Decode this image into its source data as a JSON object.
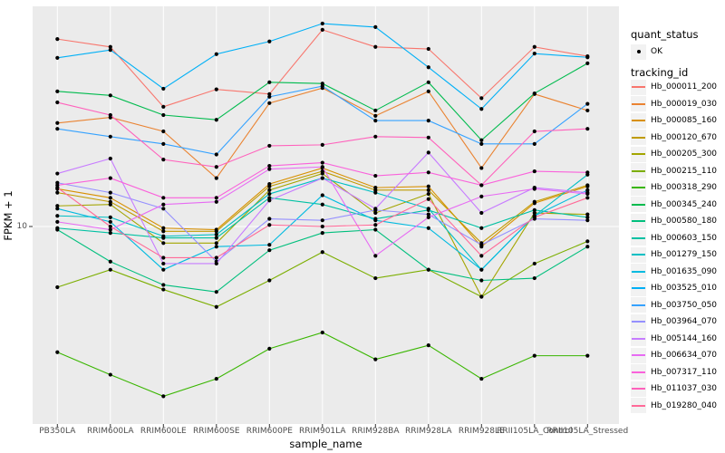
{
  "figure": {
    "xlabel": "sample_name",
    "ylabel": "FPKM + 1",
    "y_tick_label": "10",
    "panel_background": "#EBEBEB",
    "gridline_color": "#FFFFFF",
    "point_color": "#000000",
    "tick_color": "#333333"
  },
  "legend": {
    "quant_status_title": "quant_status",
    "quant_status_items": [
      {
        "label": "OK",
        "icon": "black-point"
      }
    ],
    "tracking_id_title": "tracking_id"
  },
  "chart_data": {
    "type": "line",
    "title": "",
    "xlabel": "sample_name",
    "ylabel": "FPKM + 1",
    "x_scale": "categorical",
    "y_scale": "log10",
    "y_ticks": [
      10
    ],
    "y_approx_range": [
      3.2,
      40
    ],
    "grid": "ggplot-white-on-gray",
    "legend_position": "right",
    "point_marker": "black dot (quant_status OK)",
    "categories": [
      "PB350LA",
      "RRIM600LA",
      "RRIM600LE",
      "RRIM600SE",
      "RRIM600PE",
      "RRIM901LA",
      "RRIM928BA",
      "RRIM928LA",
      "RRIM928LE",
      "RRII105LA_Control",
      "RRII105LA_Stressed"
    ],
    "series": [
      {
        "name": "Hb_000011_200",
        "color": "#F8766D",
        "values": [
          32.9,
          31.3,
          21.4,
          23.9,
          23.2,
          34.9,
          31.3,
          30.9,
          22.6,
          31.3,
          29.5
        ]
      },
      {
        "name": "Hb_000019_030",
        "color": "#EA8331",
        "values": [
          19.3,
          20.0,
          18.3,
          13.6,
          21.9,
          24.1,
          20.2,
          23.6,
          14.5,
          23.2,
          20.9
        ]
      },
      {
        "name": "Hb_000085_160",
        "color": "#D89000",
        "values": [
          12.7,
          12.0,
          9.9,
          9.8,
          13.1,
          14.5,
          12.8,
          12.9,
          8.8,
          11.6,
          12.9
        ]
      },
      {
        "name": "Hb_000120_670",
        "color": "#C09B00",
        "values": [
          12.4,
          11.7,
          9.7,
          9.7,
          12.9,
          14.2,
          12.6,
          12.6,
          9.0,
          11.7,
          13.0
        ]
      },
      {
        "name": "Hb_000205_300",
        "color": "#A3A500",
        "values": [
          11.4,
          11.5,
          9.0,
          9.0,
          12.6,
          14.0,
          10.9,
          12.3,
          6.4,
          10.9,
          10.8
        ]
      },
      {
        "name": "Hb_000215_110",
        "color": "#7CAE00",
        "values": [
          6.8,
          7.6,
          6.7,
          6.0,
          7.1,
          8.5,
          7.2,
          7.6,
          6.4,
          7.9,
          9.1
        ]
      },
      {
        "name": "Hb_000318_290",
        "color": "#39B600",
        "values": [
          4.5,
          3.9,
          3.4,
          3.8,
          4.6,
          5.1,
          4.3,
          4.7,
          3.8,
          4.4,
          4.4
        ]
      },
      {
        "name": "Hb_000345_240",
        "color": "#00BB4E",
        "values": [
          23.6,
          23.0,
          20.3,
          19.7,
          25.0,
          24.8,
          20.9,
          25.0,
          17.3,
          23.3,
          28.2
        ]
      },
      {
        "name": "Hb_000580_180",
        "color": "#00BF7D",
        "values": [
          9.8,
          8.0,
          6.9,
          6.6,
          8.6,
          9.6,
          9.8,
          7.6,
          7.1,
          7.2,
          8.8
        ]
      },
      {
        "name": "Hb_000603_150",
        "color": "#00C1A3",
        "values": [
          9.9,
          9.6,
          9.3,
          9.3,
          12.0,
          11.5,
          10.5,
          11.1,
          9.9,
          11.1,
          10.6
        ]
      },
      {
        "name": "Hb_001279_150",
        "color": "#00BFC4",
        "values": [
          10.7,
          10.6,
          9.4,
          9.5,
          12.3,
          13.6,
          12.4,
          11.2,
          7.6,
          10.7,
          13.9
        ]
      },
      {
        "name": "Hb_001635_090",
        "color": "#00BAE0",
        "values": [
          11.2,
          10.3,
          7.6,
          8.8,
          8.9,
          12.2,
          10.4,
          9.9,
          7.6,
          10.7,
          12.6
        ]
      },
      {
        "name": "Hb_003525_010",
        "color": "#00B0F6",
        "values": [
          29.2,
          30.7,
          24.0,
          29.9,
          32.4,
          36.3,
          35.5,
          27.5,
          21.1,
          30.0,
          29.3
        ]
      },
      {
        "name": "Hb_003750_050",
        "color": "#35A2FF",
        "values": [
          18.6,
          17.7,
          16.9,
          15.8,
          22.8,
          24.4,
          19.6,
          19.6,
          16.9,
          16.9,
          21.8
        ]
      },
      {
        "name": "Hb_003964_070",
        "color": "#9590FF",
        "values": [
          13.2,
          12.4,
          11.2,
          8.0,
          10.5,
          10.4,
          11.1,
          10.8,
          8.9,
          10.5,
          10.4
        ]
      },
      {
        "name": "Hb_005144_160",
        "color": "#C77CFF",
        "values": [
          14.0,
          15.4,
          7.9,
          7.9,
          11.8,
          13.6,
          11.2,
          16.0,
          10.9,
          12.8,
          12.4
        ]
      },
      {
        "name": "Hb_006634_070",
        "color": "#E76BF3",
        "values": [
          10.3,
          9.8,
          11.5,
          11.7,
          14.4,
          14.6,
          8.3,
          10.6,
          12.1,
          12.7,
          12.3
        ]
      },
      {
        "name": "Hb_007317_110",
        "color": "#FA62DB",
        "values": [
          13.0,
          13.6,
          12.0,
          12.0,
          14.7,
          15.0,
          13.8,
          14.1,
          13.0,
          14.2,
          14.1
        ]
      },
      {
        "name": "Hb_011037_030",
        "color": "#FF62BC",
        "values": [
          22.0,
          20.3,
          15.3,
          14.6,
          16.7,
          16.8,
          17.7,
          17.6,
          13.0,
          18.3,
          18.6
        ]
      },
      {
        "name": "Hb_019280_040",
        "color": "#FF6A98",
        "values": [
          12.8,
          10.0,
          8.2,
          8.2,
          10.1,
          10.0,
          10.1,
          11.9,
          8.3,
          10.6,
          12.0
        ]
      }
    ]
  }
}
